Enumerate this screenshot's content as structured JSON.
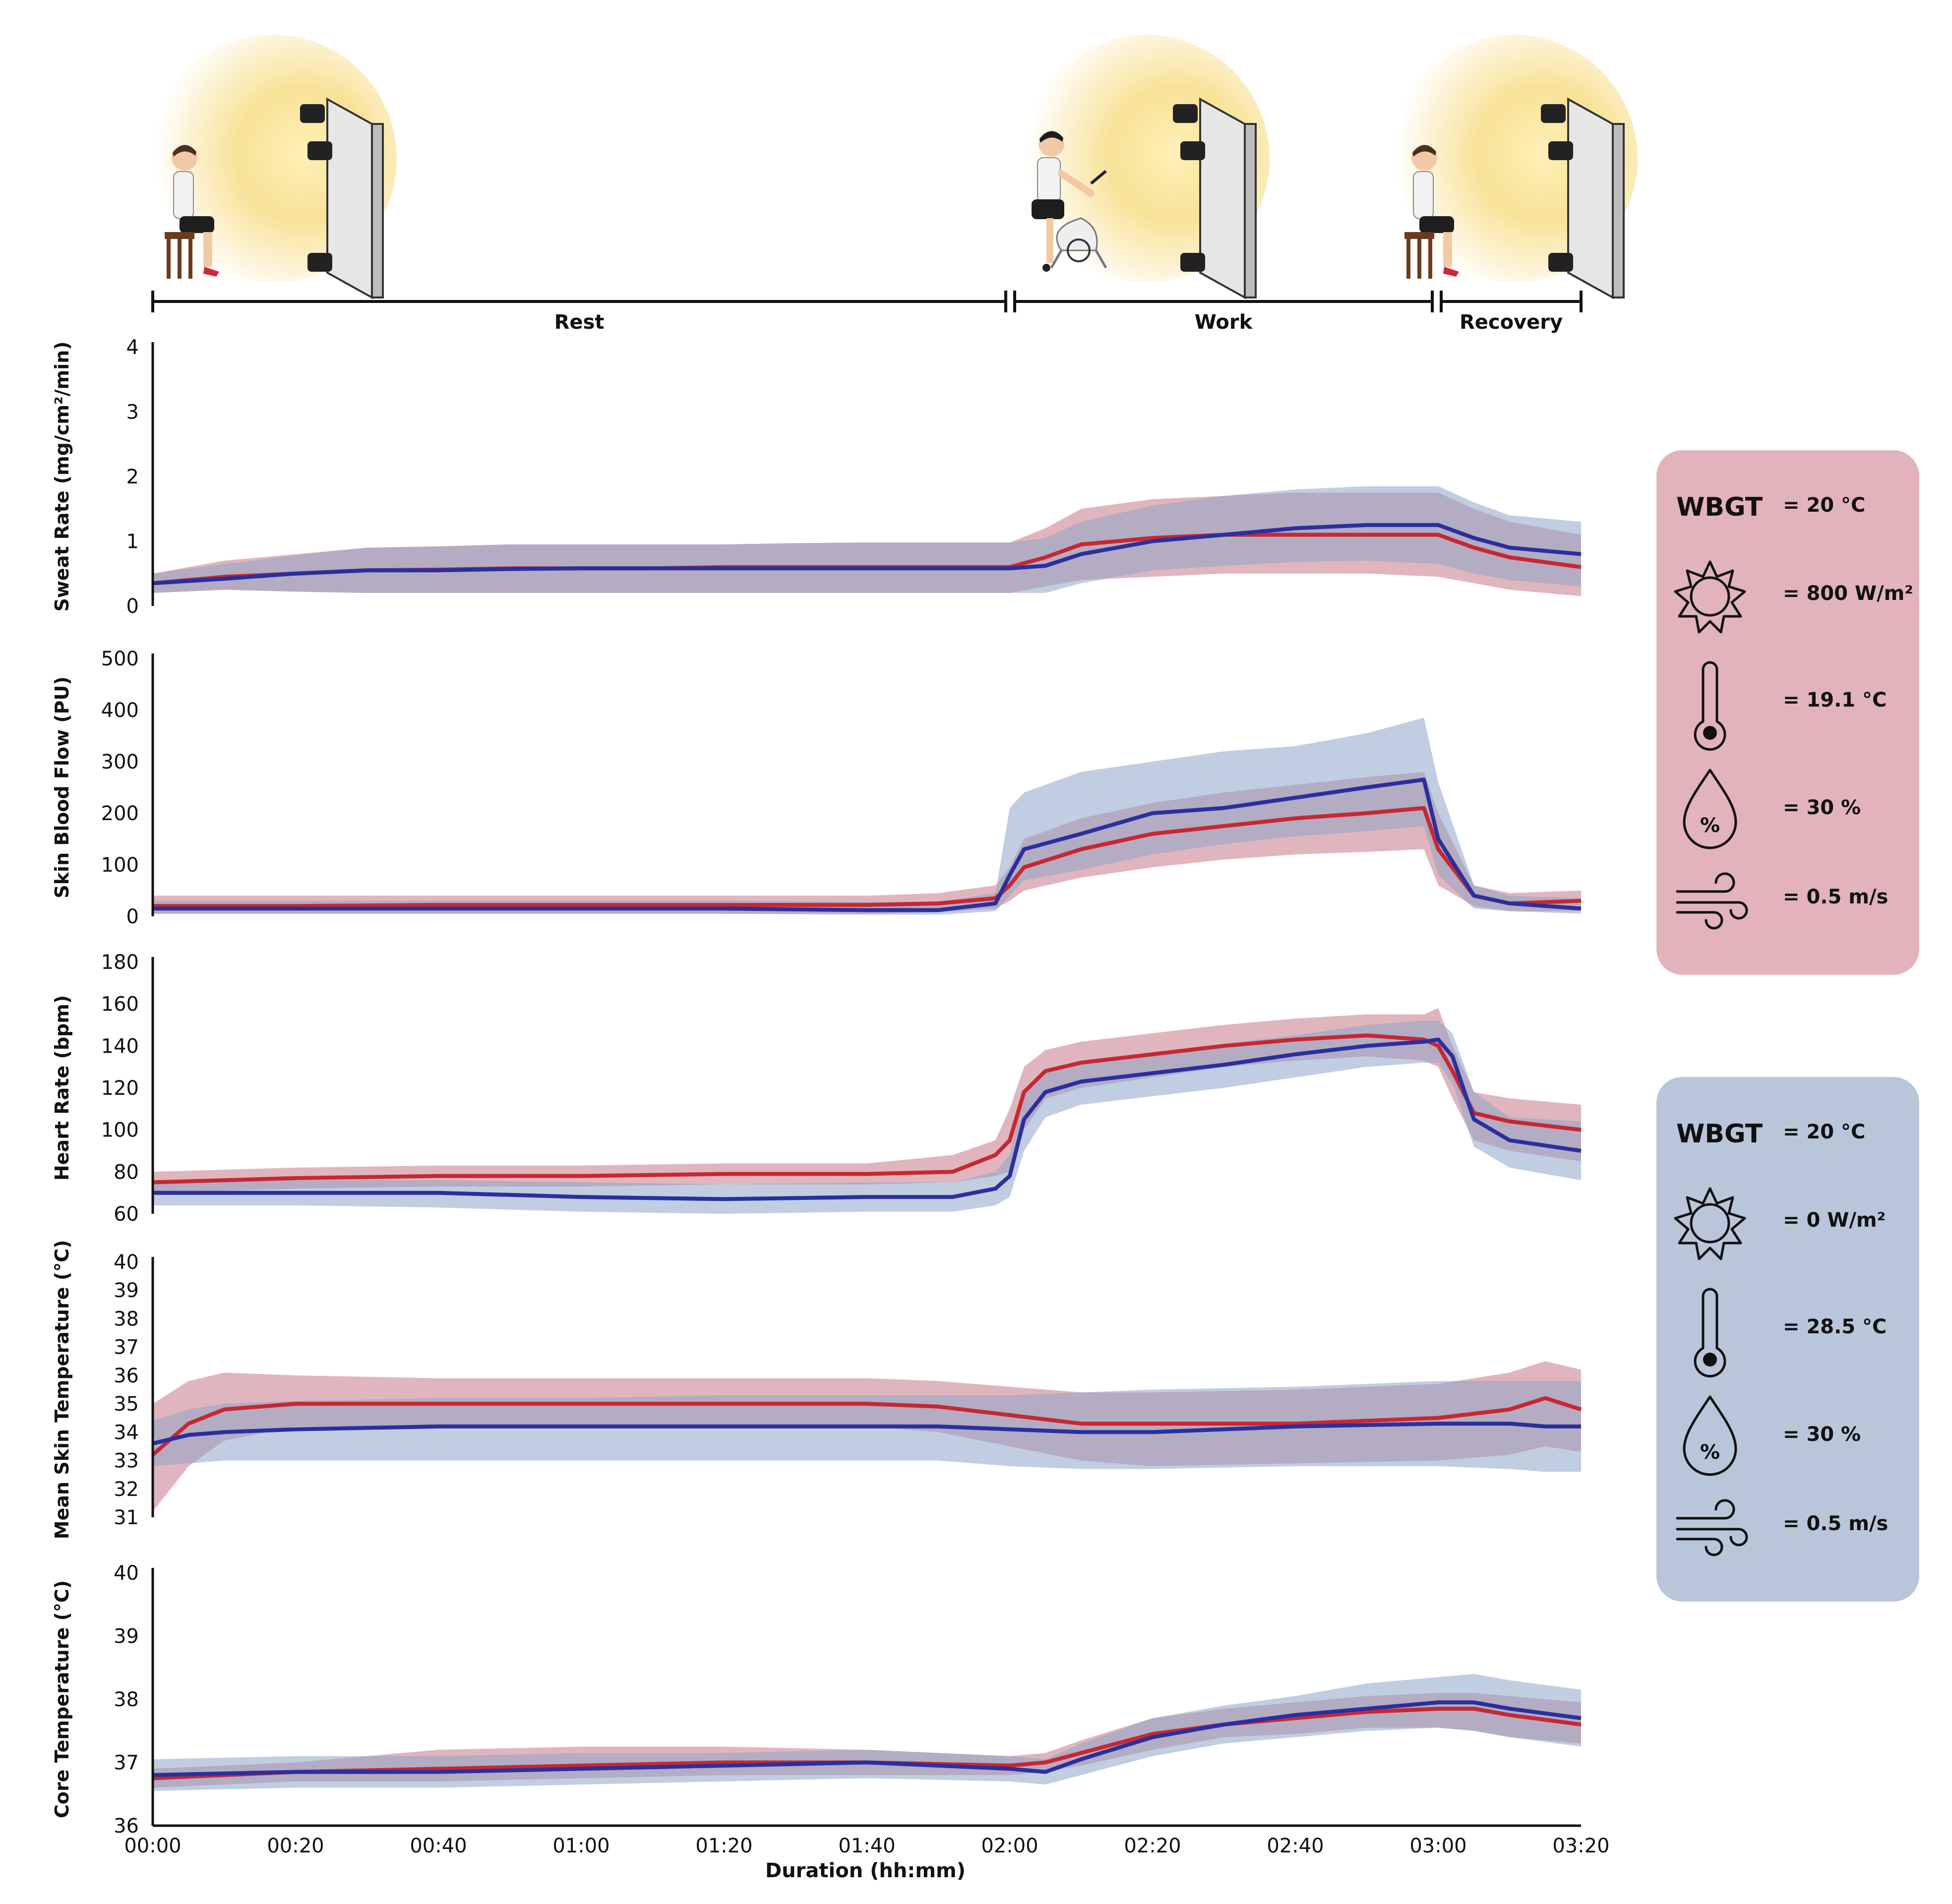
{
  "colors": {
    "red_line": "#c62832",
    "blue_line": "#2b2f9e",
    "red_band": "#c97886",
    "blue_band": "#8ea4c6",
    "red_box": "#e3b3bc",
    "blue_box": "#b9c6da"
  },
  "phases": [
    {
      "label": "Rest",
      "start": 0,
      "end": 120
    },
    {
      "label": "Work",
      "start": 120,
      "end": 180
    },
    {
      "label": "Recovery",
      "start": 180,
      "end": 200
    }
  ],
  "chart_data": [
    {
      "type": "line",
      "title": "",
      "ylabel": "Sweat Rate (mg/cm²/min)",
      "ylim": [
        0,
        4
      ],
      "yticks": [
        "0",
        "1",
        "2",
        "3",
        "4"
      ],
      "x": [
        0,
        10,
        20,
        30,
        40,
        50,
        60,
        70,
        80,
        90,
        100,
        110,
        120,
        125,
        130,
        140,
        150,
        160,
        170,
        180,
        185,
        190,
        200
      ],
      "series": [
        {
          "name": "Radiant heat (800 W/m²)",
          "color_key": "red",
          "values": [
            0.35,
            0.45,
            0.5,
            0.55,
            0.56,
            0.58,
            0.58,
            0.58,
            0.6,
            0.6,
            0.6,
            0.6,
            0.6,
            0.75,
            0.95,
            1.05,
            1.1,
            1.1,
            1.1,
            1.1,
            0.9,
            0.75,
            0.6
          ],
          "lower": [
            0.2,
            0.25,
            0.22,
            0.2,
            0.2,
            0.2,
            0.2,
            0.2,
            0.2,
            0.2,
            0.2,
            0.2,
            0.2,
            0.3,
            0.4,
            0.45,
            0.5,
            0.5,
            0.5,
            0.45,
            0.35,
            0.25,
            0.15
          ],
          "upper": [
            0.5,
            0.7,
            0.8,
            0.9,
            0.92,
            0.95,
            0.95,
            0.95,
            0.95,
            0.97,
            0.98,
            0.98,
            0.98,
            1.2,
            1.5,
            1.65,
            1.7,
            1.75,
            1.75,
            1.75,
            1.5,
            1.3,
            1.1
          ]
        },
        {
          "name": "No radiant heat (0 W/m²)",
          "color_key": "blue",
          "values": [
            0.35,
            0.42,
            0.5,
            0.55,
            0.55,
            0.57,
            0.58,
            0.58,
            0.58,
            0.58,
            0.58,
            0.58,
            0.58,
            0.62,
            0.8,
            1.0,
            1.1,
            1.2,
            1.25,
            1.25,
            1.05,
            0.9,
            0.8
          ],
          "lower": [
            0.2,
            0.25,
            0.22,
            0.2,
            0.2,
            0.2,
            0.2,
            0.2,
            0.2,
            0.2,
            0.2,
            0.2,
            0.2,
            0.2,
            0.35,
            0.55,
            0.62,
            0.68,
            0.7,
            0.65,
            0.5,
            0.4,
            0.3
          ],
          "upper": [
            0.5,
            0.65,
            0.78,
            0.9,
            0.92,
            0.95,
            0.95,
            0.95,
            0.95,
            0.97,
            0.98,
            0.98,
            0.98,
            1.05,
            1.3,
            1.55,
            1.7,
            1.8,
            1.85,
            1.85,
            1.6,
            1.4,
            1.3
          ]
        }
      ]
    },
    {
      "type": "line",
      "title": "",
      "ylabel": "Skin Blood Flow (PU)",
      "ylim": [
        0,
        500
      ],
      "yticks": [
        "0",
        "100",
        "200",
        "300",
        "400",
        "500"
      ],
      "x": [
        0,
        20,
        40,
        60,
        80,
        100,
        110,
        118,
        120,
        122,
        130,
        140,
        150,
        160,
        170,
        178,
        180,
        185,
        190,
        200
      ],
      "series": [
        {
          "name": "Radiant heat (800 W/m²)",
          "color_key": "red",
          "values": [
            20,
            20,
            22,
            22,
            22,
            22,
            25,
            35,
            60,
            95,
            130,
            160,
            175,
            190,
            200,
            210,
            130,
            40,
            25,
            30
          ],
          "lower": [
            5,
            5,
            5,
            5,
            5,
            5,
            8,
            15,
            30,
            50,
            75,
            95,
            110,
            120,
            125,
            130,
            60,
            20,
            10,
            10
          ],
          "upper": [
            40,
            40,
            40,
            40,
            40,
            40,
            45,
            60,
            95,
            150,
            190,
            220,
            240,
            255,
            270,
            280,
            200,
            60,
            45,
            50
          ]
        },
        {
          "name": "No radiant heat (0 W/m²)",
          "color_key": "blue",
          "values": [
            15,
            15,
            15,
            15,
            15,
            12,
            12,
            25,
            80,
            130,
            160,
            200,
            210,
            230,
            250,
            265,
            150,
            40,
            25,
            15
          ],
          "lower": [
            5,
            5,
            5,
            5,
            5,
            3,
            3,
            10,
            40,
            70,
            90,
            120,
            140,
            155,
            165,
            175,
            80,
            15,
            10,
            5
          ],
          "upper": [
            30,
            30,
            30,
            30,
            30,
            28,
            28,
            45,
            210,
            240,
            280,
            300,
            320,
            330,
            355,
            385,
            260,
            60,
            40,
            35
          ]
        }
      ]
    },
    {
      "type": "line",
      "title": "",
      "ylabel": "Heart Rate (bpm)",
      "ylim": [
        60,
        180
      ],
      "yticks": [
        "60",
        "80",
        "100",
        "120",
        "140",
        "160",
        "180"
      ],
      "x": [
        0,
        20,
        40,
        60,
        80,
        100,
        112,
        118,
        120,
        122,
        125,
        130,
        140,
        150,
        160,
        170,
        178,
        180,
        182,
        185,
        190,
        200
      ],
      "series": [
        {
          "name": "Radiant heat (800 W/m²)",
          "color_key": "red",
          "values": [
            75,
            77,
            78,
            78,
            79,
            79,
            80,
            88,
            95,
            118,
            128,
            132,
            136,
            140,
            143,
            145,
            143,
            140,
            128,
            108,
            104,
            100
          ],
          "lower": [
            70,
            72,
            73,
            73,
            74,
            74,
            75,
            78,
            80,
            100,
            115,
            120,
            125,
            130,
            133,
            135,
            133,
            130,
            115,
            95,
            90,
            85
          ],
          "upper": [
            80,
            82,
            83,
            83,
            84,
            84,
            88,
            95,
            110,
            130,
            138,
            142,
            146,
            150,
            153,
            155,
            155,
            158,
            140,
            118,
            115,
            112
          ]
        },
        {
          "name": "No radiant heat (0 W/m²)",
          "color_key": "blue",
          "values": [
            70,
            70,
            70,
            68,
            67,
            68,
            68,
            72,
            78,
            105,
            118,
            123,
            127,
            131,
            136,
            140,
            142,
            143,
            135,
            105,
            95,
            90
          ],
          "lower": [
            64,
            64,
            63,
            61,
            60,
            61,
            61,
            64,
            68,
            90,
            106,
            112,
            116,
            120,
            125,
            130,
            132,
            132,
            122,
            92,
            82,
            76
          ],
          "upper": [
            76,
            76,
            76,
            75,
            74,
            75,
            75,
            80,
            88,
            118,
            128,
            133,
            137,
            141,
            145,
            150,
            152,
            152,
            146,
            118,
            106,
            104
          ]
        }
      ]
    },
    {
      "type": "line",
      "title": "",
      "ylabel": "Mean Skin Temperature (°C)",
      "ylim": [
        31,
        40
      ],
      "yticks": [
        "31",
        "32",
        "33",
        "34",
        "35",
        "36",
        "37",
        "38",
        "39",
        "40"
      ],
      "x": [
        0,
        5,
        10,
        20,
        40,
        60,
        80,
        100,
        110,
        120,
        130,
        140,
        160,
        180,
        190,
        195,
        200
      ],
      "series": [
        {
          "name": "Radiant heat (800 W/m²)",
          "color_key": "red",
          "values": [
            33.2,
            34.3,
            34.8,
            35.0,
            35.0,
            35.0,
            35.0,
            35.0,
            34.9,
            34.6,
            34.3,
            34.3,
            34.3,
            34.5,
            34.8,
            35.2,
            34.8
          ],
          "lower": [
            31.2,
            32.8,
            33.7,
            34.2,
            34.2,
            34.2,
            34.2,
            34.2,
            34.0,
            33.5,
            33.0,
            32.8,
            32.9,
            33.0,
            33.2,
            33.5,
            33.3
          ],
          "upper": [
            35.0,
            35.8,
            36.1,
            36.0,
            35.9,
            35.9,
            35.9,
            35.9,
            35.8,
            35.6,
            35.4,
            35.4,
            35.5,
            35.7,
            36.1,
            36.5,
            36.2
          ]
        },
        {
          "name": "No radiant heat (0 W/m²)",
          "color_key": "blue",
          "values": [
            33.6,
            33.9,
            34.0,
            34.1,
            34.2,
            34.2,
            34.2,
            34.2,
            34.2,
            34.1,
            34.0,
            34.0,
            34.2,
            34.3,
            34.3,
            34.2,
            34.2
          ],
          "lower": [
            32.8,
            32.9,
            33.0,
            33.0,
            33.0,
            33.0,
            33.0,
            33.0,
            33.0,
            32.8,
            32.7,
            32.7,
            32.8,
            32.8,
            32.7,
            32.6,
            32.6
          ],
          "upper": [
            34.4,
            34.8,
            35.0,
            35.1,
            35.2,
            35.2,
            35.3,
            35.3,
            35.3,
            35.3,
            35.4,
            35.5,
            35.6,
            35.8,
            35.8,
            35.8,
            35.8
          ]
        }
      ]
    },
    {
      "type": "line",
      "title": "",
      "ylabel": "Core Temperature (°C)",
      "ylim": [
        36,
        40
      ],
      "yticks": [
        "36",
        "37",
        "38",
        "39",
        "40"
      ],
      "x": [
        0,
        20,
        40,
        60,
        80,
        100,
        120,
        125,
        130,
        140,
        150,
        160,
        170,
        180,
        185,
        190,
        200
      ],
      "series": [
        {
          "name": "Radiant heat (800 W/m²)",
          "color_key": "red",
          "values": [
            36.75,
            36.85,
            36.9,
            36.95,
            37.0,
            37.0,
            36.95,
            37.0,
            37.15,
            37.45,
            37.6,
            37.7,
            37.8,
            37.85,
            37.85,
            37.75,
            37.6
          ],
          "lower": [
            36.6,
            36.7,
            36.7,
            36.75,
            36.8,
            36.8,
            36.8,
            36.85,
            36.95,
            37.2,
            37.4,
            37.45,
            37.55,
            37.55,
            37.5,
            37.4,
            37.3
          ],
          "upper": [
            36.9,
            37.0,
            37.2,
            37.25,
            37.25,
            37.2,
            37.1,
            37.15,
            37.35,
            37.7,
            37.85,
            37.95,
            38.05,
            38.1,
            38.1,
            38.05,
            37.95
          ]
        },
        {
          "name": "No radiant heat (0 W/m²)",
          "color_key": "blue",
          "values": [
            36.8,
            36.85,
            36.85,
            36.9,
            36.95,
            37.0,
            36.9,
            36.85,
            37.05,
            37.4,
            37.6,
            37.75,
            37.85,
            37.95,
            37.95,
            37.85,
            37.7
          ],
          "lower": [
            36.55,
            36.6,
            36.6,
            36.65,
            36.7,
            36.75,
            36.7,
            36.65,
            36.8,
            37.1,
            37.3,
            37.4,
            37.5,
            37.55,
            37.5,
            37.4,
            37.25
          ],
          "upper": [
            37.05,
            37.1,
            37.1,
            37.15,
            37.15,
            37.2,
            37.1,
            37.05,
            37.3,
            37.7,
            37.9,
            38.05,
            38.25,
            38.35,
            38.4,
            38.3,
            38.15
          ]
        }
      ]
    }
  ],
  "x_axis": {
    "label": "Duration (hh:mm)",
    "range": [
      0,
      200
    ],
    "ticks": [
      {
        "value": 0,
        "label": "00:00"
      },
      {
        "value": 20,
        "label": "00:20"
      },
      {
        "value": 40,
        "label": "00:40"
      },
      {
        "value": 60,
        "label": "01:00"
      },
      {
        "value": 80,
        "label": "01:20"
      },
      {
        "value": 100,
        "label": "01:40"
      },
      {
        "value": 120,
        "label": "02:00"
      },
      {
        "value": 140,
        "label": "02:20"
      },
      {
        "value": 160,
        "label": "02:40"
      },
      {
        "value": 180,
        "label": "03:00"
      },
      {
        "value": 200,
        "label": "03:20"
      }
    ]
  },
  "legend": {
    "red": {
      "wbgt_label": "WBGT",
      "wbgt_value": "= 20 °C",
      "solar": "= 800 W/m²",
      "air_temp": "= 19.1 °C",
      "humidity": "= 30 %",
      "wind": "= 0.5 m/s",
      "humidity_symbol": "%"
    },
    "blue": {
      "wbgt_label": "WBGT",
      "wbgt_value": "= 20 °C",
      "solar": "= 0 W/m²",
      "air_temp": "= 28.5 °C",
      "humidity": "= 30 %",
      "wind": "= 0.5 m/s",
      "humidity_symbol": "%"
    }
  }
}
